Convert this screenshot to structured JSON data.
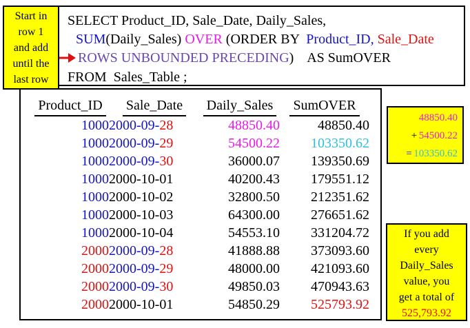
{
  "palette": {
    "black": "#000000",
    "blue": "#1414cc",
    "red": "#dd1111",
    "magenta": "#e81be8",
    "cyan": "#2bbfdf",
    "purple": "#6a45b5",
    "yellow": "#ffff00"
  },
  "callout": {
    "lines": [
      "Start in",
      "row 1",
      "and add",
      "until the",
      "last row"
    ]
  },
  "sql": {
    "lines": [
      {
        "indent": false,
        "arrow": false,
        "segments": [
          {
            "text": "SELECT Product_ID, Sale_Date, Daily_Sales,",
            "color": "black"
          }
        ]
      },
      {
        "indent": true,
        "arrow": false,
        "segments": [
          {
            "text": "SUM",
            "color": "blue"
          },
          {
            "text": "(Daily_Sales) ",
            "color": "black"
          },
          {
            "text": "OVER",
            "color": "magenta"
          },
          {
            "text": " (ORDER BY  ",
            "color": "black"
          },
          {
            "text": "Product_ID,",
            "color": "blue"
          },
          {
            "text": " ",
            "color": "black"
          },
          {
            "text": "Sale_Date",
            "color": "red"
          }
        ]
      },
      {
        "indent": true,
        "arrow": true,
        "segments": [
          {
            "text": "ROWS UNBOUNDED PRECEDING",
            "color": "purple"
          },
          {
            "text": ")    AS SumOVER",
            "color": "black"
          }
        ]
      },
      {
        "indent": false,
        "arrow": false,
        "segments": [
          {
            "text": "FROM  Sales_Table ;",
            "color": "black"
          }
        ]
      }
    ]
  },
  "table": {
    "headers": [
      "Product_ID",
      "Sale_Date",
      "Daily_Sales",
      "SumOVER"
    ],
    "rows": [
      {
        "product_id": "1000",
        "pid_color": "blue",
        "date": {
          "prefix": "2000-09-",
          "day": "28"
        },
        "daily_sales": "48850.40",
        "daily_color": "magenta",
        "sum_over": "48850.40",
        "sum_color": "black"
      },
      {
        "product_id": "1000",
        "pid_color": "blue",
        "date": {
          "prefix": "2000-09-",
          "day": "29"
        },
        "daily_sales": "54500.22",
        "daily_color": "magenta",
        "sum_over": "103350.62",
        "sum_color": "cyan"
      },
      {
        "product_id": "1000",
        "pid_color": "blue",
        "date": {
          "prefix": "2000-09-",
          "day": "30"
        },
        "daily_sales": "36000.07",
        "daily_color": "black",
        "sum_over": "139350.69",
        "sum_color": "black"
      },
      {
        "product_id": "1000",
        "pid_color": "blue",
        "date": {
          "text": "2000-10-01"
        },
        "daily_sales": "40200.43",
        "daily_color": "black",
        "sum_over": "179551.12",
        "sum_color": "black"
      },
      {
        "product_id": "1000",
        "pid_color": "blue",
        "date": {
          "text": "2000-10-02"
        },
        "daily_sales": "32800.50",
        "daily_color": "black",
        "sum_over": "212351.62",
        "sum_color": "black"
      },
      {
        "product_id": "1000",
        "pid_color": "blue",
        "date": {
          "text": "2000-10-03"
        },
        "daily_sales": "64300.00",
        "daily_color": "black",
        "sum_over": "276651.62",
        "sum_color": "black"
      },
      {
        "product_id": "1000",
        "pid_color": "blue",
        "date": {
          "text": "2000-10-04"
        },
        "daily_sales": "54553.10",
        "daily_color": "black",
        "sum_over": "331204.72",
        "sum_color": "black"
      },
      {
        "product_id": "2000",
        "pid_color": "red",
        "date": {
          "prefix": "2000-09-",
          "day": "28"
        },
        "daily_sales": "41888.88",
        "daily_color": "black",
        "sum_over": "373093.60",
        "sum_color": "black"
      },
      {
        "product_id": "2000",
        "pid_color": "red",
        "date": {
          "prefix": "2000-09-",
          "day": "29"
        },
        "daily_sales": "48000.00",
        "daily_color": "black",
        "sum_over": "421093.60",
        "sum_color": "black"
      },
      {
        "product_id": "2000",
        "pid_color": "red",
        "date": {
          "prefix": "2000-09-",
          "day": "30"
        },
        "daily_sales": "49850.03",
        "daily_color": "black",
        "sum_over": "470943.63",
        "sum_color": "black"
      },
      {
        "product_id": "2000",
        "pid_color": "red",
        "date": {
          "text": "2000-10-01"
        },
        "daily_sales": "54850.29",
        "daily_color": "black",
        "sum_over": "525793.92",
        "sum_color": "red"
      }
    ]
  },
  "calc_box": {
    "lines": [
      {
        "op": "",
        "op_color": "black",
        "num": "48850.40",
        "num_color": "magenta"
      },
      {
        "op": "+",
        "op_color": "black",
        "num": "54500.22",
        "num_color": "magenta"
      },
      {
        "op": "=",
        "op_color": "blue",
        "num": "103350.62",
        "num_color": "cyan"
      }
    ]
  },
  "note_box": {
    "lines": [
      "If you add",
      "every",
      "Daily_Sales",
      "value, you",
      "get a total of"
    ],
    "total": "525,793.92",
    "total_color": "red"
  }
}
